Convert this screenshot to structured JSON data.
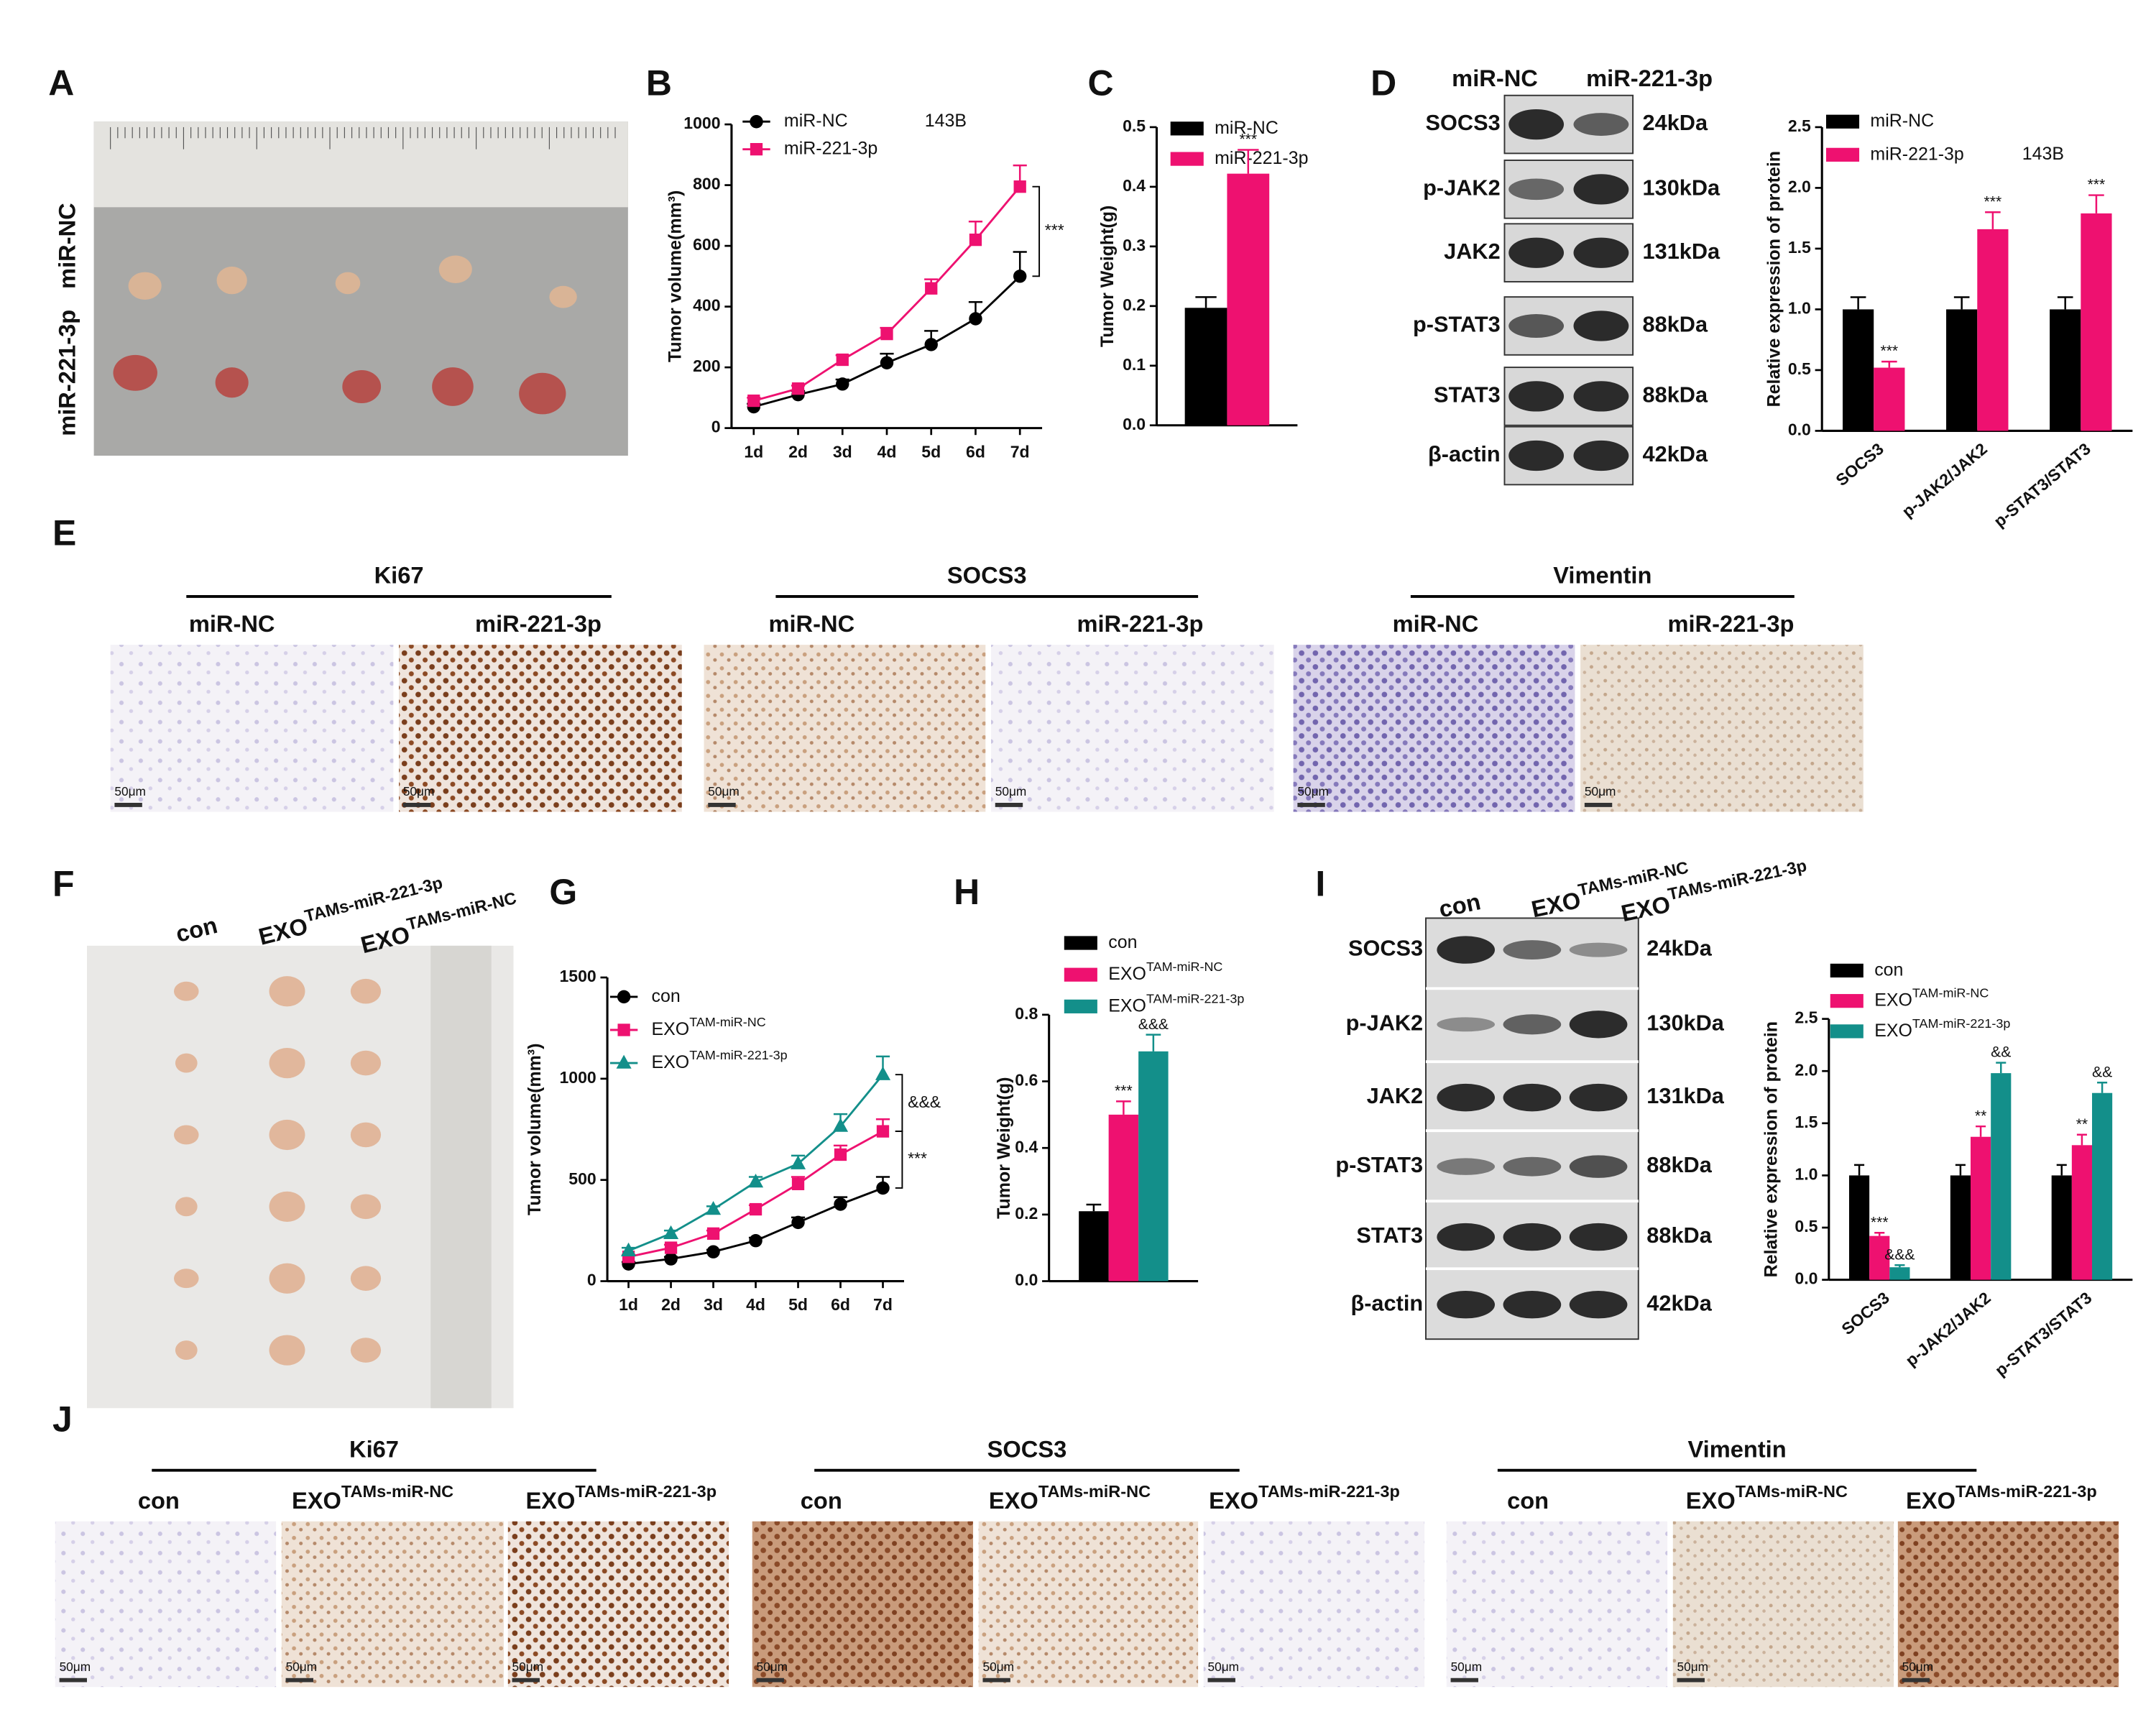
{
  "chart_data": [
    {
      "type": "line",
      "annotation": "143B",
      "ylabel": "Tumor volume(mm³)",
      "categories": [
        "1d",
        "2d",
        "3d",
        "4d",
        "5d",
        "6d",
        "7d"
      ],
      "ylim": [
        0,
        1000
      ],
      "yticks": [
        0,
        200,
        400,
        600,
        800,
        1000
      ],
      "series": [
        {
          "name": "miR-NC",
          "color": "#000000",
          "marker": "circle",
          "values": [
            70,
            110,
            145,
            215,
            275,
            360,
            500
          ],
          "errors": [
            10,
            12,
            15,
            30,
            45,
            55,
            80
          ]
        },
        {
          "name": "miR-221-3p",
          "color": "#ee1170",
          "marker": "square",
          "values": [
            90,
            130,
            225,
            310,
            460,
            620,
            795
          ],
          "errors": [
            10,
            10,
            15,
            20,
            30,
            60,
            70
          ]
        }
      ],
      "bracket_labels": [
        "***"
      ]
    },
    {
      "type": "bar",
      "ylabel": "Tumor Weight(g)",
      "ylim": [
        0,
        0.5
      ],
      "yticks": [
        {
          "value": 0,
          "label": "0.0"
        },
        0.1,
        0.2,
        0.3,
        0.4,
        0.5
      ],
      "series": [
        {
          "name": "miR-NC",
          "color": "#000000",
          "values": [
            0.197
          ],
          "errors": [
            0.018
          ]
        },
        {
          "name": "miR-221-3p",
          "color": "#ee1170",
          "values": [
            0.422
          ],
          "errors": [
            0.04
          ],
          "annotations": [
            "***"
          ]
        }
      ]
    },
    {
      "type": "bar",
      "annotation": "143B",
      "ylabel": "Relative expression of protein",
      "categories": [
        "SOCS3",
        "p-JAK2/JAK2",
        "p-STAT3/STAT3"
      ],
      "ylim": [
        0,
        2.5
      ],
      "yticks": [
        {
          "value": 0,
          "label": "0.0"
        },
        0.5,
        {
          "value": 1,
          "label": "1.0"
        },
        1.5,
        {
          "value": 2,
          "label": "2.0"
        },
        2.5
      ],
      "series": [
        {
          "name": "miR-NC",
          "color": "#000000",
          "values": [
            1,
            1,
            1
          ],
          "errors": [
            0.1,
            0.1,
            0.1
          ]
        },
        {
          "name": "miR-221-3p",
          "color": "#ee1170",
          "values": [
            0.52,
            1.66,
            1.79
          ],
          "errors": [
            0.05,
            0.14,
            0.15
          ],
          "annotations": [
            "***",
            "***",
            "***"
          ]
        }
      ]
    },
    {
      "type": "line",
      "ylabel": "Tumor volume(mm³)",
      "categories": [
        "1d",
        "2d",
        "3d",
        "4d",
        "5d",
        "6d",
        "7d"
      ],
      "ylim": [
        0,
        1500
      ],
      "yticks": [
        0,
        500,
        1000,
        1500
      ],
      "series": [
        {
          "name": "con",
          "color": "#000000",
          "marker": "circle",
          "values": [
            85,
            110,
            145,
            200,
            290,
            380,
            460
          ],
          "errors": [
            10,
            10,
            10,
            15,
            25,
            35,
            55
          ]
        },
        {
          "name": "EXO",
          "name_sup": "TAM-miR-NC",
          "color": "#ee1170",
          "marker": "square",
          "values": [
            120,
            165,
            235,
            355,
            480,
            625,
            740
          ],
          "errors": [
            10,
            15,
            15,
            20,
            35,
            45,
            60
          ]
        },
        {
          "name": "EXO",
          "name_sup": "TAM-miR-221-3p",
          "color": "#138f8a",
          "marker": "triangle",
          "values": [
            150,
            235,
            355,
            490,
            580,
            765,
            1020
          ],
          "errors": [
            15,
            15,
            15,
            25,
            40,
            60,
            90
          ]
        }
      ],
      "bracket_labels": [
        "***",
        "&&&"
      ]
    },
    {
      "type": "bar",
      "ylabel": "Tumor Weight(g)",
      "ylim": [
        0,
        0.8
      ],
      "yticks": [
        {
          "value": 0,
          "label": "0.0"
        },
        0.2,
        0.4,
        0.6,
        0.8
      ],
      "series": [
        {
          "name": "con",
          "color": "#000000",
          "values": [
            0.21
          ],
          "errors": [
            0.02
          ]
        },
        {
          "name": "EXO",
          "name_sup": "TAM-miR-NC",
          "color": "#ee1170",
          "values": [
            0.5
          ],
          "errors": [
            0.04
          ],
          "annotations": [
            "***"
          ]
        },
        {
          "name": "EXO",
          "name_sup": "TAM-miR-221-3p",
          "color": "#138f8a",
          "values": [
            0.69
          ],
          "errors": [
            0.05
          ],
          "annotations": [
            "&&&"
          ]
        }
      ]
    },
    {
      "type": "bar",
      "ylabel": "Relative expression of protein",
      "categories": [
        "SOCS3",
        "p-JAK2/JAK2",
        "p-STAT3/STAT3"
      ],
      "ylim": [
        0,
        2.5
      ],
      "yticks": [
        {
          "value": 0,
          "label": "0.0"
        },
        0.5,
        {
          "value": 1,
          "label": "1.0"
        },
        1.5,
        {
          "value": 2,
          "label": "2.0"
        },
        2.5
      ],
      "series": [
        {
          "name": "con",
          "color": "#000000",
          "values": [
            1,
            1,
            1
          ],
          "errors": [
            0.1,
            0.1,
            0.1
          ]
        },
        {
          "name": "EXO",
          "name_sup": "TAM-miR-NC",
          "color": "#ee1170",
          "values": [
            0.42,
            1.37,
            1.29
          ],
          "errors": [
            0.03,
            0.1,
            0.1
          ],
          "annotations": [
            "***",
            "**",
            "**"
          ]
        },
        {
          "name": "EXO",
          "name_sup": "TAM-miR-221-3p",
          "color": "#138f8a",
          "values": [
            0.12,
            1.98,
            1.79
          ],
          "errors": [
            0.02,
            0.1,
            0.1
          ],
          "annotations": [
            "&&&",
            "&&",
            "&&"
          ]
        }
      ]
    }
  ],
  "figure": {
    "letters": [
      "A",
      "B",
      "C",
      "D",
      "E",
      "F",
      "G",
      "H",
      "I",
      "J"
    ],
    "A_rows": [
      "miR-NC",
      "miR-221-3p"
    ],
    "D_blot": {
      "columns": [
        "miR-NC",
        "miR-221-3p"
      ],
      "rows": [
        {
          "protein": "SOCS3",
          "size": "24kDa"
        },
        {
          "protein": "p-JAK2",
          "size": "130kDa"
        },
        {
          "protein": "JAK2",
          "size": "131kDa"
        },
        {
          "protein": "p-STAT3",
          "size": "88kDa"
        },
        {
          "protein": "STAT3",
          "size": "88kDa"
        },
        {
          "protein": "β-actin",
          "size": "42kDa"
        }
      ]
    },
    "E_groups": [
      {
        "marker": "Ki67",
        "columns": [
          "miR-NC",
          "miR-221-3p"
        ]
      },
      {
        "marker": "SOCS3",
        "columns": [
          "miR-NC",
          "miR-221-3p"
        ]
      },
      {
        "marker": "Vimentin",
        "columns": [
          "miR-NC",
          "miR-221-3p"
        ]
      }
    ],
    "F_columns": [
      {
        "name": "con"
      },
      {
        "name": "EXO",
        "sup": "TAMs-miR-221-3p"
      },
      {
        "name": "EXO",
        "sup": "TAMs-miR-NC"
      }
    ],
    "I_blot": {
      "columns": [
        {
          "name": "con"
        },
        {
          "name": "EXO",
          "sup": "TAMs-miR-NC"
        },
        {
          "name": "EXO",
          "sup": "TAMs-miR-221-3p"
        }
      ],
      "rows": [
        {
          "protein": "SOCS3",
          "size": "24kDa"
        },
        {
          "protein": "p-JAK2",
          "size": "130kDa"
        },
        {
          "protein": "JAK2",
          "size": "131kDa"
        },
        {
          "protein": "p-STAT3",
          "size": "88kDa"
        },
        {
          "protein": "STAT3",
          "size": "88kDa"
        },
        {
          "protein": "β-actin",
          "size": "42kDa"
        }
      ]
    },
    "J_groups": [
      {
        "marker": "Ki67",
        "columns": [
          {
            "name": "con"
          },
          {
            "name": "EXO",
            "sup": "TAMs-miR-NC"
          },
          {
            "name": "EXO",
            "sup": "TAMs-miR-221-3p"
          }
        ]
      },
      {
        "marker": "SOCS3",
        "columns": [
          {
            "name": "con"
          },
          {
            "name": "EXO",
            "sup": "TAMs-miR-NC"
          },
          {
            "name": "EXO",
            "sup": "TAMs-miR-221-3p"
          }
        ]
      },
      {
        "marker": "Vimentin",
        "columns": [
          {
            "name": "con"
          },
          {
            "name": "EXO",
            "sup": "TAMs-miR-NC"
          },
          {
            "name": "EXO",
            "sup": "TAMs-miR-221-3p"
          }
        ]
      }
    ],
    "scale_label": "50μm"
  }
}
